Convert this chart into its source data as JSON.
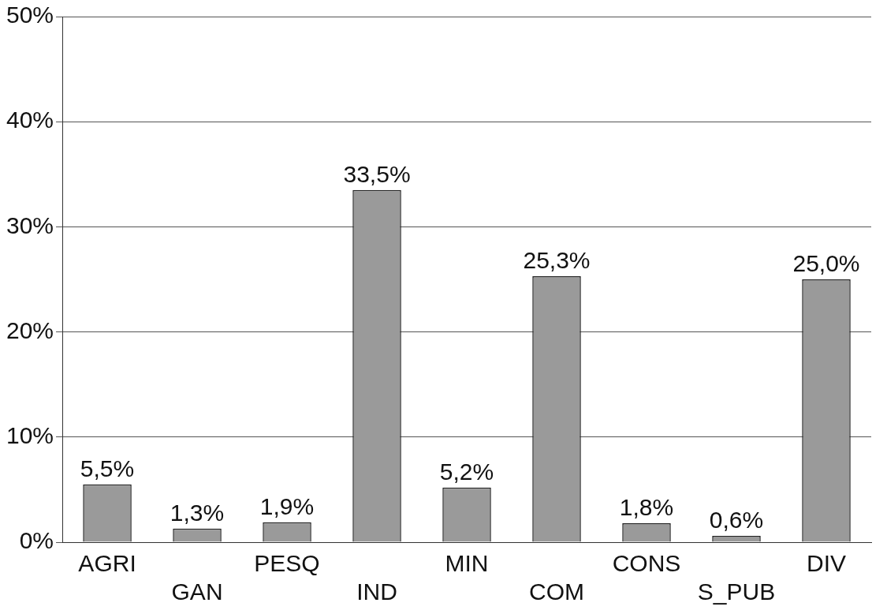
{
  "chart_data": {
    "type": "bar",
    "categories": [
      "AGRI",
      "GAN",
      "PESQ",
      "IND",
      "MIN",
      "COM",
      "CONS",
      "S_PUB",
      "DIV"
    ],
    "values": [
      5.5,
      1.3,
      1.9,
      33.5,
      5.2,
      25.3,
      1.8,
      0.6,
      25.0
    ],
    "value_labels": [
      "5,5%",
      "1,3%",
      "1,9%",
      "33,5%",
      "5,2%",
      "25,3%",
      "1,8%",
      "0,6%",
      "25,0%"
    ],
    "color": "#9a9a9a",
    "ylim": [
      0,
      50
    ],
    "yticks": [
      {
        "value": 0,
        "label": "0%"
      },
      {
        "value": 10,
        "label": "10%"
      },
      {
        "value": 20,
        "label": "20%"
      },
      {
        "value": 30,
        "label": "30%"
      },
      {
        "value": 40,
        "label": "40%"
      },
      {
        "value": 50,
        "label": "50%"
      }
    ],
    "grid": "y",
    "legend": false
  }
}
